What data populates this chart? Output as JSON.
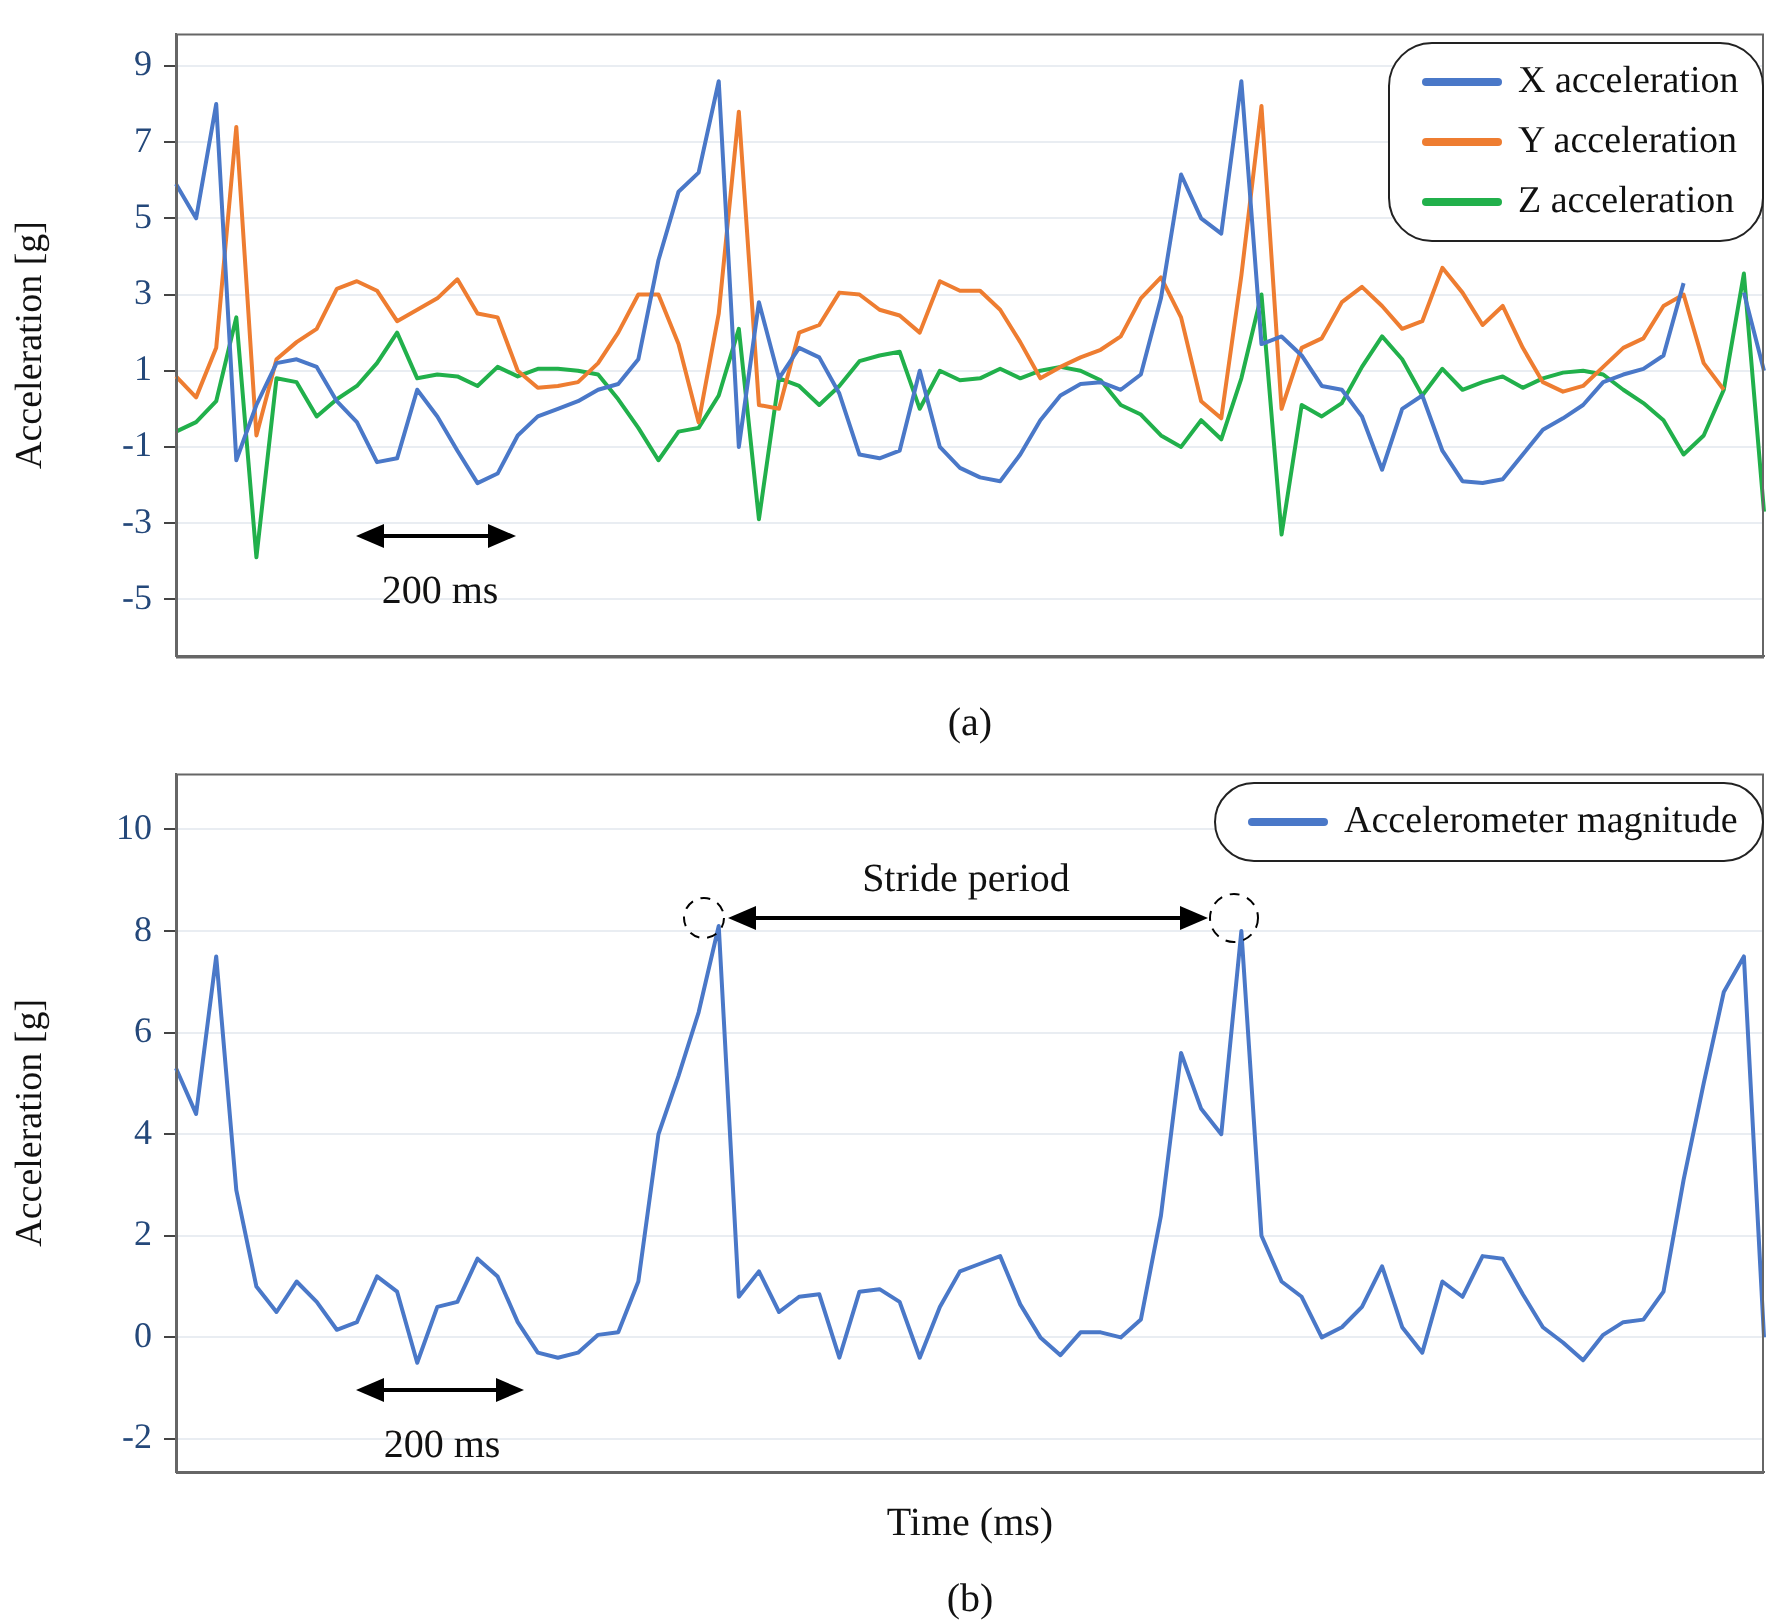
{
  "chart_data": [
    {
      "type": "line",
      "ylabel": "Acceleration [g]",
      "annotations": [
        "200 ms",
        "(a)"
      ],
      "categories": [
        null,
        null,
        null,
        null,
        null,
        null,
        null,
        null,
        null,
        null,
        null,
        null,
        null,
        null,
        null,
        null,
        null,
        null,
        null,
        null,
        null,
        null,
        null,
        null,
        null,
        null,
        null,
        null,
        null,
        null,
        null,
        null,
        null,
        null,
        null,
        null,
        null,
        null,
        null,
        null,
        null,
        null,
        null,
        null,
        null,
        null,
        null,
        null,
        null,
        null,
        null,
        null,
        null,
        null,
        null,
        null,
        null,
        null,
        null,
        null,
        null,
        null,
        null,
        null,
        null,
        null,
        null,
        null,
        null,
        null,
        null,
        null,
        null,
        null,
        null,
        null,
        null,
        null,
        null,
        null
      ],
      "series": [
        {
          "name": "X acceleration",
          "color": "#4a78c8",
          "values": [
            5.9,
            5.0,
            8.0,
            -1.35,
            0.1,
            1.2,
            1.3,
            1.1,
            0.2,
            -0.35,
            -1.4,
            -1.3,
            0.5,
            -0.2,
            -1.1,
            -1.95,
            -1.7,
            -0.7,
            -0.2,
            0.0,
            0.2,
            0.5,
            0.65,
            1.3,
            3.9,
            5.7,
            6.2,
            8.6,
            -1.0,
            2.8,
            0.8,
            1.6,
            1.35,
            0.4,
            -1.2,
            -1.3,
            -1.1,
            1.0,
            -1.0,
            -1.55,
            -1.8,
            -1.9,
            -1.2,
            -0.3,
            0.35,
            0.65,
            0.7,
            0.5,
            0.9,
            2.9,
            6.15,
            5.0,
            4.6,
            8.6,
            1.7,
            1.9,
            1.4,
            0.6,
            0.5,
            -0.2,
            -1.6,
            0.0,
            0.35,
            -1.1,
            -1.9,
            -1.95,
            -1.85,
            -1.2,
            -0.55,
            -0.25,
            0.1,
            0.7,
            0.9,
            1.05,
            1.4,
            3.3,
            null,
            null,
            3.05,
            1.0
          ]
        },
        {
          "name": "Y acceleration",
          "color": "#ee7d31",
          "values": [
            0.85,
            0.3,
            1.6,
            7.4,
            -0.7,
            1.3,
            1.75,
            2.1,
            3.15,
            3.35,
            3.1,
            2.3,
            2.6,
            2.9,
            3.4,
            2.5,
            2.4,
            1.0,
            0.55,
            0.6,
            0.7,
            1.2,
            2.0,
            3.0,
            3.0,
            1.7,
            -0.35,
            2.5,
            7.8,
            0.1,
            0.0,
            2.0,
            2.2,
            3.05,
            3.0,
            2.6,
            2.45,
            2.0,
            3.35,
            3.1,
            3.1,
            2.6,
            1.75,
            0.8,
            1.1,
            1.35,
            1.55,
            1.9,
            2.9,
            3.45,
            2.4,
            0.2,
            -0.25,
            3.5,
            7.95,
            0.0,
            1.6,
            1.85,
            2.8,
            3.2,
            2.7,
            2.1,
            2.3,
            3.7,
            3.05,
            2.2,
            2.7,
            1.6,
            0.7,
            0.45,
            0.6,
            1.1,
            1.6,
            1.85,
            2.7,
            3.0,
            1.2,
            0.5,
            null,
            null
          ]
        },
        {
          "name": "Z acceleration",
          "color": "#21b04b",
          "values": [
            -0.6,
            -0.35,
            0.2,
            2.4,
            -3.9,
            0.8,
            0.7,
            -0.2,
            0.25,
            0.6,
            1.2,
            2.0,
            0.8,
            0.9,
            0.85,
            0.6,
            1.1,
            0.85,
            1.05,
            1.05,
            1.0,
            0.9,
            0.25,
            -0.5,
            -1.35,
            -0.6,
            -0.5,
            0.35,
            2.1,
            -2.9,
            0.8,
            0.6,
            0.1,
            0.6,
            1.25,
            1.4,
            1.5,
            0.0,
            1.0,
            0.75,
            0.8,
            1.05,
            0.8,
            1.0,
            1.1,
            1.0,
            0.75,
            0.1,
            -0.15,
            -0.7,
            -1.0,
            -0.3,
            -0.8,
            0.8,
            3.0,
            -3.3,
            0.1,
            -0.2,
            0.15,
            1.1,
            1.9,
            1.3,
            0.35,
            1.05,
            0.5,
            0.7,
            0.85,
            0.55,
            0.8,
            0.95,
            1.0,
            0.9,
            0.5,
            0.15,
            -0.3,
            -1.2,
            -0.7,
            0.5,
            3.55,
            -2.7
          ]
        }
      ],
      "ylim": [
        -6.5,
        9.85
      ],
      "yticks": [
        -5,
        -3,
        -1,
        1,
        3,
        5,
        7,
        9
      ],
      "grid": "y",
      "legend": "top right",
      "tick_labels": "y"
    },
    {
      "type": "line",
      "xlabel": "Time (ms)",
      "ylabel": "Acceleration [g]",
      "annotations": [
        "200 ms",
        "Stride period",
        "(b)"
      ],
      "categories": [
        null,
        null,
        null,
        null,
        null,
        null,
        null,
        null,
        null,
        null,
        null,
        null,
        null,
        null,
        null,
        null,
        null,
        null,
        null,
        null,
        null,
        null,
        null,
        null,
        null,
        null,
        null,
        null,
        null,
        null,
        null,
        null,
        null,
        null,
        null,
        null,
        null,
        null,
        null,
        null,
        null,
        null,
        null,
        null,
        null,
        null,
        null,
        null,
        null,
        null,
        null,
        null,
        null,
        null,
        null,
        null,
        null,
        null,
        null,
        null,
        null,
        null,
        null,
        null,
        null,
        null,
        null,
        null,
        null,
        null,
        null,
        null,
        null,
        null,
        null,
        null,
        null,
        null,
        null,
        null
      ],
      "series": [
        {
          "name": "Accelerometer magnitude",
          "color": "#4a78c8",
          "values": [
            5.3,
            4.4,
            7.5,
            2.9,
            1.0,
            0.5,
            1.1,
            0.7,
            0.15,
            0.3,
            1.2,
            0.9,
            -0.5,
            0.6,
            0.7,
            1.55,
            1.2,
            0.3,
            -0.3,
            -0.4,
            -0.3,
            0.05,
            0.1,
            1.1,
            4.0,
            5.15,
            6.4,
            8.1,
            0.8,
            1.3,
            0.5,
            0.8,
            0.85,
            -0.4,
            0.9,
            0.95,
            0.7,
            -0.4,
            0.6,
            1.3,
            1.45,
            1.6,
            0.65,
            0.0,
            -0.35,
            0.1,
            0.1,
            0.0,
            0.35,
            2.4,
            5.6,
            4.5,
            4.0,
            8.0,
            2.0,
            1.1,
            0.8,
            0.0,
            0.2,
            0.6,
            1.4,
            0.2,
            -0.3,
            1.1,
            0.8,
            1.6,
            1.55,
            0.85,
            0.2,
            -0.1,
            -0.45,
            0.05,
            0.3,
            0.35,
            0.9,
            3.1,
            5.0,
            6.8,
            7.5,
            0.0
          ]
        }
      ],
      "ylim": [
        -2.65,
        11.1
      ],
      "yticks": [
        -2,
        0,
        2,
        4,
        6,
        8,
        10
      ],
      "grid": "y",
      "legend": "top right",
      "tick_labels": "y"
    }
  ]
}
